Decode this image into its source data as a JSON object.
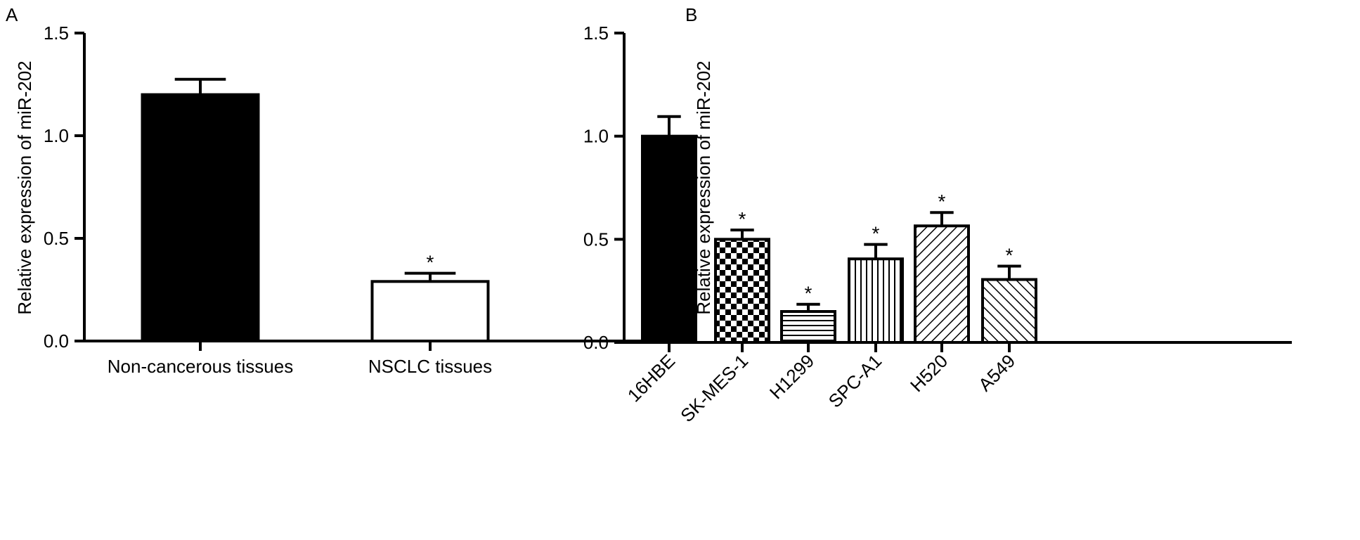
{
  "chart_data": [
    {
      "type": "bar",
      "panel": "A",
      "ylabel": "Relative expression of miR-202",
      "ylim": [
        0,
        1.5
      ],
      "yticks": [
        "0.0",
        "0.5",
        "1.0",
        "1.5"
      ],
      "categories": [
        "Non-cancerous tissues",
        "NSCLC tissues"
      ],
      "values": [
        1.2,
        0.29
      ],
      "errors": [
        0.075,
        0.04
      ],
      "fills": [
        "solid-black",
        "white"
      ],
      "significance": [
        "",
        "*"
      ]
    },
    {
      "type": "bar",
      "panel": "B",
      "ylabel": "Relative expression of miR-202",
      "ylim": [
        0,
        1.5
      ],
      "yticks": [
        "0.0",
        "0.5",
        "1.0",
        "1.5"
      ],
      "categories": [
        "16HBE",
        "SK-MES-1",
        "H1299",
        "SPC-A1",
        "H520",
        "A549"
      ],
      "values": [
        1.0,
        0.5,
        0.15,
        0.405,
        0.565,
        0.305
      ],
      "errors": [
        0.095,
        0.045,
        0.035,
        0.07,
        0.065,
        0.065
      ],
      "fills": [
        "solid-black",
        "checkerboard",
        "horizontal-lines",
        "vertical-lines",
        "diagonal-lines",
        "diagonal-lines-reverse"
      ],
      "significance": [
        "",
        "*",
        "*",
        "*",
        "*",
        "*"
      ]
    }
  ]
}
